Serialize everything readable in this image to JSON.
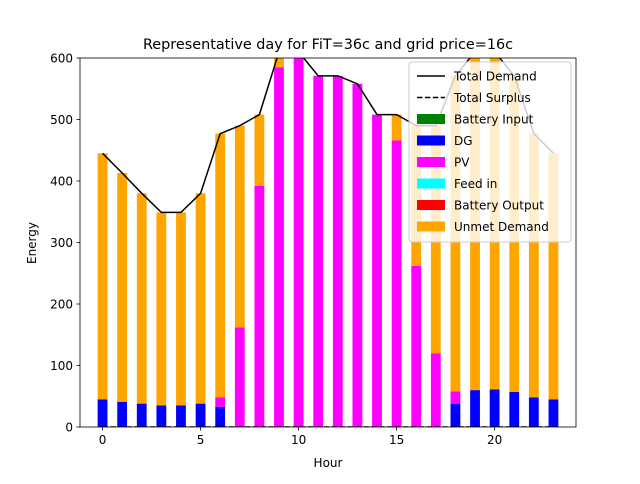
{
  "chart_data": {
    "type": "bar",
    "title": "Representative day for FiT=36c and grid price=16c",
    "xlabel": "Hour",
    "ylabel": "Energy",
    "xlim": [
      -1.15,
      24.15
    ],
    "ylim": [
      0,
      600
    ],
    "xticks": [
      0,
      5,
      10,
      15,
      20
    ],
    "yticks": [
      0,
      100,
      200,
      300,
      400,
      500,
      600
    ],
    "legend_position": "top-right",
    "colors": {
      "battery_input": "#008000",
      "dg": "#0000ff",
      "pv": "#ff00ff",
      "feed_in": "#00ffff",
      "battery_output": "#ff0000",
      "unmet_demand": "#ffa500",
      "total_demand": "#000000",
      "total_surplus": "#000000"
    },
    "x": [
      0,
      1,
      2,
      3,
      4,
      5,
      6,
      7,
      8,
      9,
      10,
      11,
      12,
      13,
      14,
      15,
      16,
      17,
      18,
      19,
      20,
      21,
      22,
      23
    ],
    "series": [
      {
        "name": "Total Demand",
        "kind": "line",
        "color_key": "total_demand",
        "values": [
          445,
          413,
          380,
          349,
          349,
          380,
          477,
          490,
          508,
          610,
          610,
          571,
          571,
          558,
          508,
          508,
          490,
          490,
          571,
          610,
          610,
          571,
          477,
          445
        ]
      },
      {
        "name": "Total Surplus",
        "kind": "line-dashed",
        "color_key": "total_surplus",
        "values": [
          0,
          0,
          0,
          0,
          0,
          0,
          0,
          0,
          0,
          0,
          0,
          0,
          0,
          0,
          0,
          0,
          0,
          0,
          0,
          0,
          0,
          0,
          0,
          0
        ]
      },
      {
        "name": "Battery Input",
        "kind": "bar",
        "color_key": "battery_input",
        "values": [
          0,
          0,
          0,
          0,
          0,
          0,
          0,
          0,
          0,
          0,
          0,
          0,
          0,
          0,
          0,
          0,
          0,
          0,
          0,
          0,
          0,
          0,
          0,
          0
        ]
      },
      {
        "name": "DG",
        "kind": "bar",
        "color_key": "dg",
        "values": [
          45,
          41,
          38,
          35,
          35,
          38,
          33,
          0,
          0,
          0,
          0,
          0,
          0,
          0,
          0,
          0,
          0,
          0,
          38,
          60,
          61,
          57,
          48,
          45
        ]
      },
      {
        "name": "PV",
        "kind": "bar",
        "color_key": "pv",
        "values": [
          0,
          0,
          0,
          0,
          0,
          0,
          15,
          162,
          392,
          585,
          610,
          571,
          571,
          558,
          508,
          466,
          262,
          120,
          20,
          0,
          0,
          0,
          0,
          0
        ]
      },
      {
        "name": "Feed in",
        "kind": "bar",
        "color_key": "feed_in",
        "values": [
          0,
          0,
          0,
          0,
          0,
          0,
          0,
          0,
          0,
          0,
          0,
          0,
          0,
          0,
          0,
          0,
          0,
          0,
          0,
          0,
          0,
          0,
          0,
          0
        ]
      },
      {
        "name": "Battery Output",
        "kind": "bar",
        "color_key": "battery_output",
        "values": [
          0,
          0,
          0,
          0,
          0,
          0,
          0,
          0,
          0,
          0,
          0,
          0,
          0,
          0,
          0,
          0,
          0,
          0,
          0,
          0,
          0,
          0,
          0,
          0
        ]
      },
      {
        "name": "Unmet Demand",
        "kind": "bar",
        "color_key": "unmet_demand",
        "values": [
          400,
          372,
          342,
          314,
          314,
          342,
          429,
          328,
          116,
          25,
          0,
          0,
          0,
          0,
          0,
          42,
          228,
          370,
          513,
          550,
          549,
          514,
          429,
          400
        ]
      }
    ]
  }
}
